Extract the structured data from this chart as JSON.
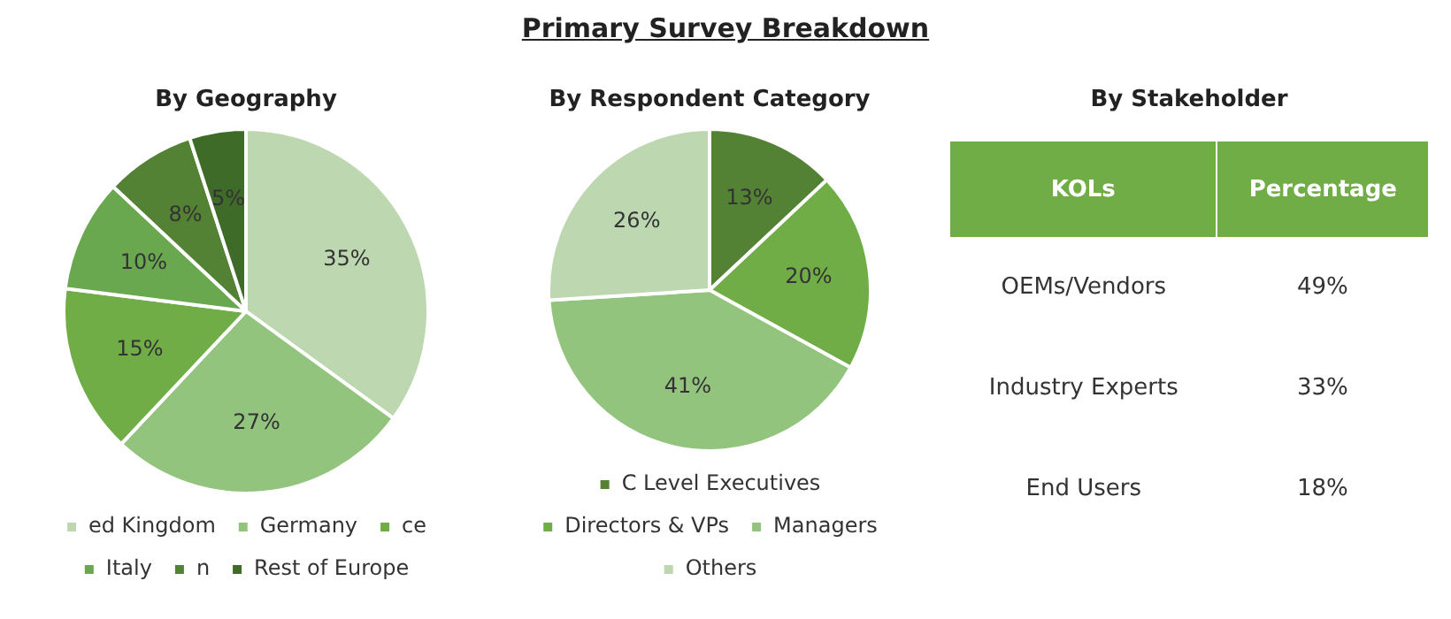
{
  "chart_data": [
    {
      "type": "other",
      "title": "Primary Survey Breakdown"
    },
    {
      "type": "pie",
      "title": "By Geography",
      "categories": [
        "ed Kingdom",
        "Germany",
        "ce",
        "Italy",
        "n",
        "Rest of Europe"
      ],
      "values": [
        35,
        27,
        15,
        10,
        8,
        5
      ],
      "value_labels": [
        "35%",
        "27%",
        "15%",
        "10%",
        "8%",
        "5%"
      ],
      "colors": [
        "#bdd7b0",
        "#93c47d",
        "#70ad47",
        "#6aa84f",
        "#548235",
        "#3e6b28"
      ],
      "legend": "bottom"
    },
    {
      "type": "pie",
      "title": "By Respondent Category",
      "categories": [
        "C Level Executives",
        "Directors & VPs",
        "Managers",
        "Others"
      ],
      "values": [
        13,
        20,
        41,
        26
      ],
      "value_labels": [
        "13%",
        "20%",
        "41%",
        "26%"
      ],
      "colors": [
        "#548235",
        "#70ad47",
        "#93c47d",
        "#bdd7b0"
      ],
      "legend": "bottom"
    },
    {
      "type": "other",
      "title": "By Stakeholder",
      "xlabel": "KOLs",
      "ylabel": "Percentage",
      "categories": [
        "OEMs/Vendors",
        "Industry Experts",
        "End Users"
      ],
      "values": [
        49,
        33,
        18
      ],
      "value_labels": [
        "49%",
        "33%",
        "18%"
      ]
    }
  ]
}
